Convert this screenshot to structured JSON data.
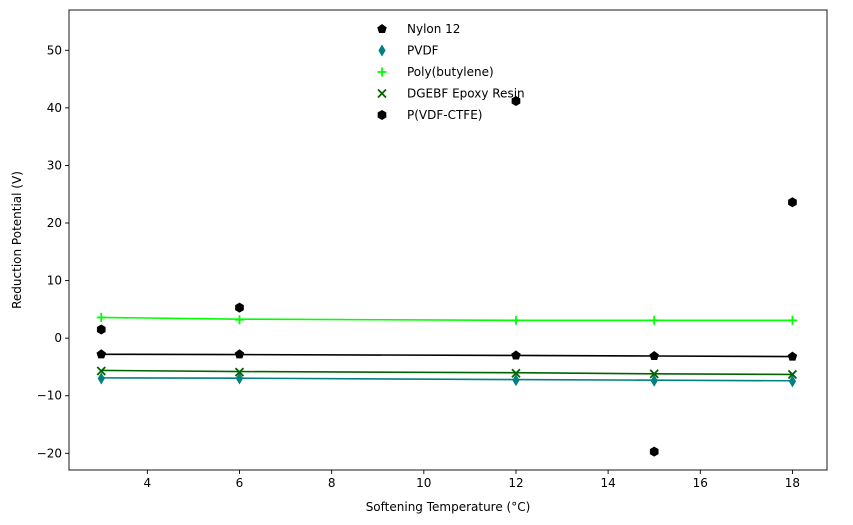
{
  "chart_data": {
    "type": "scatter",
    "title": "",
    "xlabel": "Softening Temperature (°C)",
    "ylabel": "Reduction Potential (V)",
    "xlim": [
      2.3,
      18.75
    ],
    "ylim": [
      -22.9,
      57.0
    ],
    "xticks": [
      4,
      6,
      8,
      10,
      12,
      14,
      16,
      18
    ],
    "yticks": [
      -20,
      -10,
      0,
      10,
      20,
      30,
      40,
      50
    ],
    "grid": false,
    "legend_position": "top-center",
    "series": [
      {
        "name": "Nylon 12",
        "marker": "pentagon",
        "color": "#000000",
        "x": [
          3,
          6,
          12,
          15,
          18
        ],
        "y": [
          -2.8,
          -2.8,
          -3.0,
          -3.1,
          -3.2
        ],
        "trend": {
          "x": [
            3,
            6,
            12,
            15,
            18
          ],
          "y": [
            -2.8,
            -2.85,
            -3.0,
            -3.1,
            -3.2
          ],
          "color": "#000000"
        }
      },
      {
        "name": "PVDF",
        "marker": "thin-diamond",
        "color": "#008080",
        "x": [
          3,
          6,
          12,
          15,
          18
        ],
        "y": [
          -7.0,
          -7.0,
          -7.3,
          -7.4,
          -7.5
        ],
        "trend": {
          "x": [
            3,
            6,
            12,
            15,
            18
          ],
          "y": [
            -6.9,
            -6.95,
            -7.2,
            -7.3,
            -7.4
          ],
          "color": "#008080"
        }
      },
      {
        "name": "Poly(butylene)",
        "marker": "plus",
        "color": "#00ff00",
        "x": [
          3,
          6,
          12,
          15,
          18
        ],
        "y": [
          3.6,
          3.2,
          3.1,
          3.1,
          3.1
        ],
        "trend": {
          "x": [
            3,
            6,
            12,
            15,
            18
          ],
          "y": [
            3.6,
            3.3,
            3.1,
            3.1,
            3.1
          ],
          "color": "#00ff00"
        }
      },
      {
        "name": "DGEBF Epoxy Resin",
        "marker": "x",
        "color": "#006400",
        "x": [
          3,
          6,
          12,
          15,
          18
        ],
        "y": [
          -5.7,
          -5.9,
          -6.1,
          -6.2,
          -6.3
        ],
        "trend": {
          "x": [
            3,
            6,
            12,
            15,
            18
          ],
          "y": [
            -5.6,
            -5.8,
            -6.0,
            -6.2,
            -6.3
          ],
          "color": "#006400"
        }
      },
      {
        "name": "P(VDF-CTFE)",
        "marker": "hexagon",
        "color": "#000000",
        "x": [
          3,
          6,
          12,
          15,
          18
        ],
        "y": [
          1.5,
          5.3,
          41.2,
          -19.7,
          23.6
        ]
      }
    ]
  }
}
